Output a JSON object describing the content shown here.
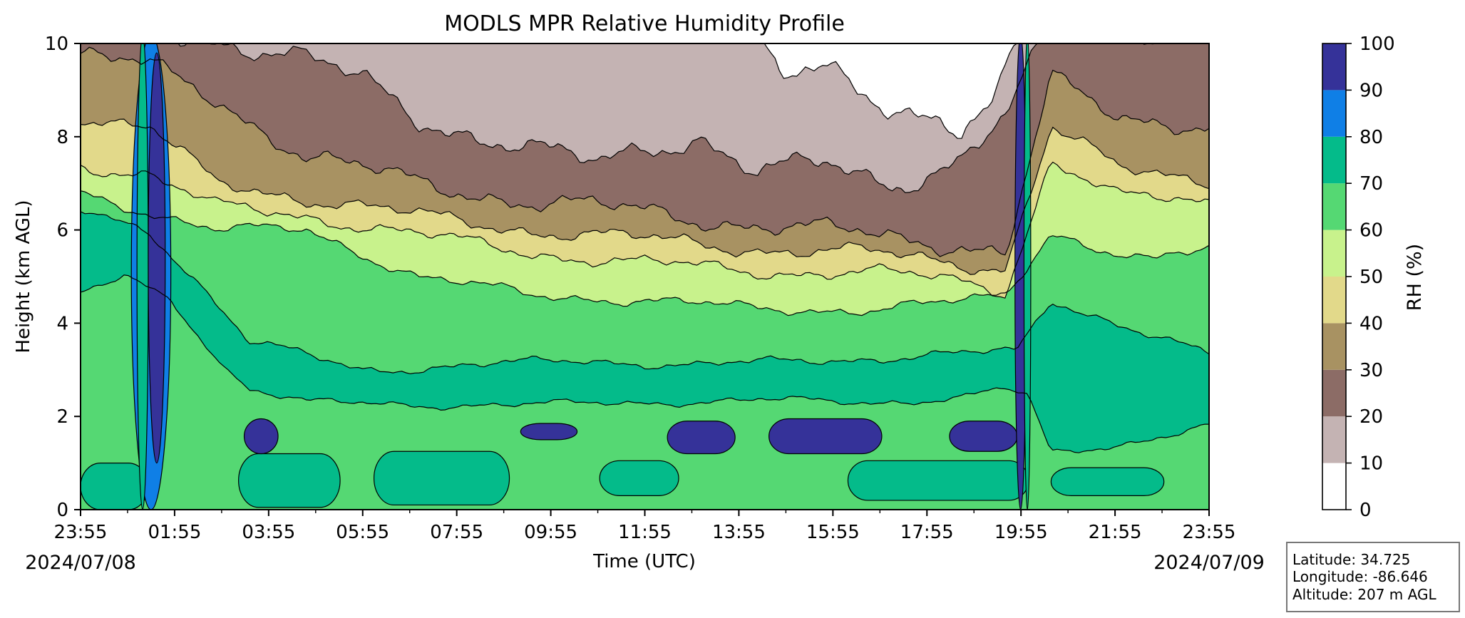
{
  "chart_data": {
    "type": "heatmap",
    "title": "MODLS MPR Relative Humidity Profile",
    "xlabel": "Time (UTC)",
    "ylabel": "Height (km AGL)",
    "xlim": [
      "2024-07-08 23:55",
      "2024-07-09 23:55"
    ],
    "ylim": [
      0,
      10
    ],
    "x_ticks": [
      "23:55",
      "01:55",
      "03:55",
      "05:55",
      "07:55",
      "09:55",
      "11:55",
      "13:55",
      "15:55",
      "17:55",
      "19:55",
      "21:55",
      "23:55"
    ],
    "y_ticks": [
      "0",
      "2",
      "4",
      "6",
      "8",
      "10"
    ],
    "start_date": "2024/07/08",
    "end_date": "2024/07/09",
    "colorbar": {
      "label": "RH (%)",
      "levels": [
        0,
        10,
        20,
        30,
        40,
        50,
        60,
        70,
        80,
        90,
        100
      ],
      "tick_labels": [
        "0",
        "10",
        "20",
        "30",
        "40",
        "50",
        "60",
        "70",
        "80",
        "90",
        "100"
      ],
      "colors": [
        "#ffffff",
        "#c4b3b3",
        "#8c6c66",
        "#a89262",
        "#e2d98a",
        "#c8f28c",
        "#55d873",
        "#04bb8a",
        "#0f7fe6",
        "#353299"
      ]
    },
    "station_info": {
      "latitude": "Latitude: 34.725",
      "longitude": "Longitude: -86.646",
      "altitude": "Altitude: 207 m AGL"
    }
  }
}
